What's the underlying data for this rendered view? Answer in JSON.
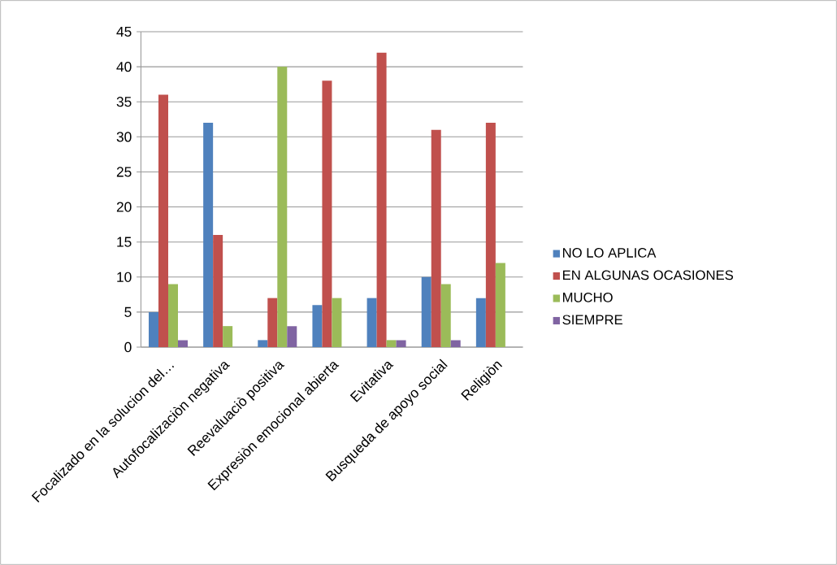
{
  "chart_data": {
    "type": "bar",
    "categories": [
      "Focalizado en la solucion del…",
      "Autofocalizaciòn negativa",
      "Reevaluaciò positiva",
      "Expresiòn emocional abierta",
      "Evitativa",
      "Busqueda de apoyo social",
      "Religiòn"
    ],
    "series": [
      {
        "name": "NO LO APLICA",
        "color": "#4f81bd",
        "values": [
          5,
          32,
          1,
          6,
          7,
          10,
          7
        ]
      },
      {
        "name": "EN ALGUNAS OCASIONES",
        "color": "#c0504d",
        "values": [
          36,
          16,
          7,
          38,
          42,
          31,
          32
        ]
      },
      {
        "name": "MUCHO",
        "color": "#9bbb59",
        "values": [
          9,
          3,
          40,
          7,
          1,
          9,
          12
        ]
      },
      {
        "name": "SIEMPRE",
        "color": "#8064a2",
        "values": [
          1,
          null,
          3,
          null,
          1,
          1,
          null
        ]
      }
    ],
    "ylim": [
      0,
      45
    ],
    "yticks": [
      0,
      5,
      10,
      15,
      20,
      25,
      30,
      35,
      40,
      45
    ],
    "grid": "y",
    "legend": "right"
  }
}
